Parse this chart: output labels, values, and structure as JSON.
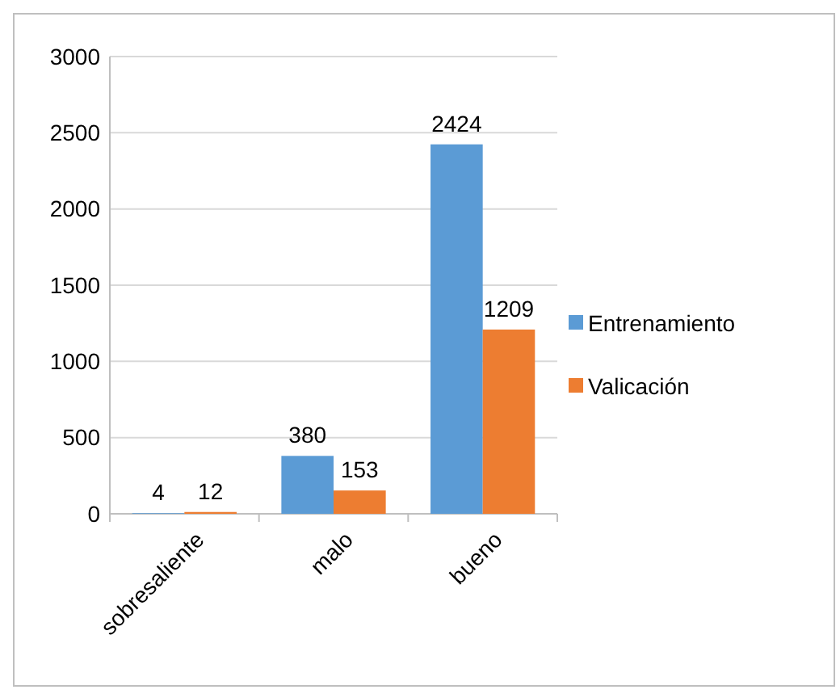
{
  "chart_data": {
    "type": "bar",
    "categories": [
      "sobresaliente",
      "malo",
      "bueno"
    ],
    "series": [
      {
        "name": "Entrenamiento",
        "color": "#5b9bd5",
        "values": [
          4,
          380,
          2424
        ]
      },
      {
        "name": "Valicación",
        "color": "#ed7d31",
        "values": [
          12,
          153,
          1209
        ]
      }
    ],
    "ylim": [
      0,
      3000
    ],
    "yticks": [
      0,
      500,
      1000,
      1500,
      2000,
      2500,
      3000
    ],
    "grid": "y",
    "legend": "right",
    "data_labels": true
  }
}
